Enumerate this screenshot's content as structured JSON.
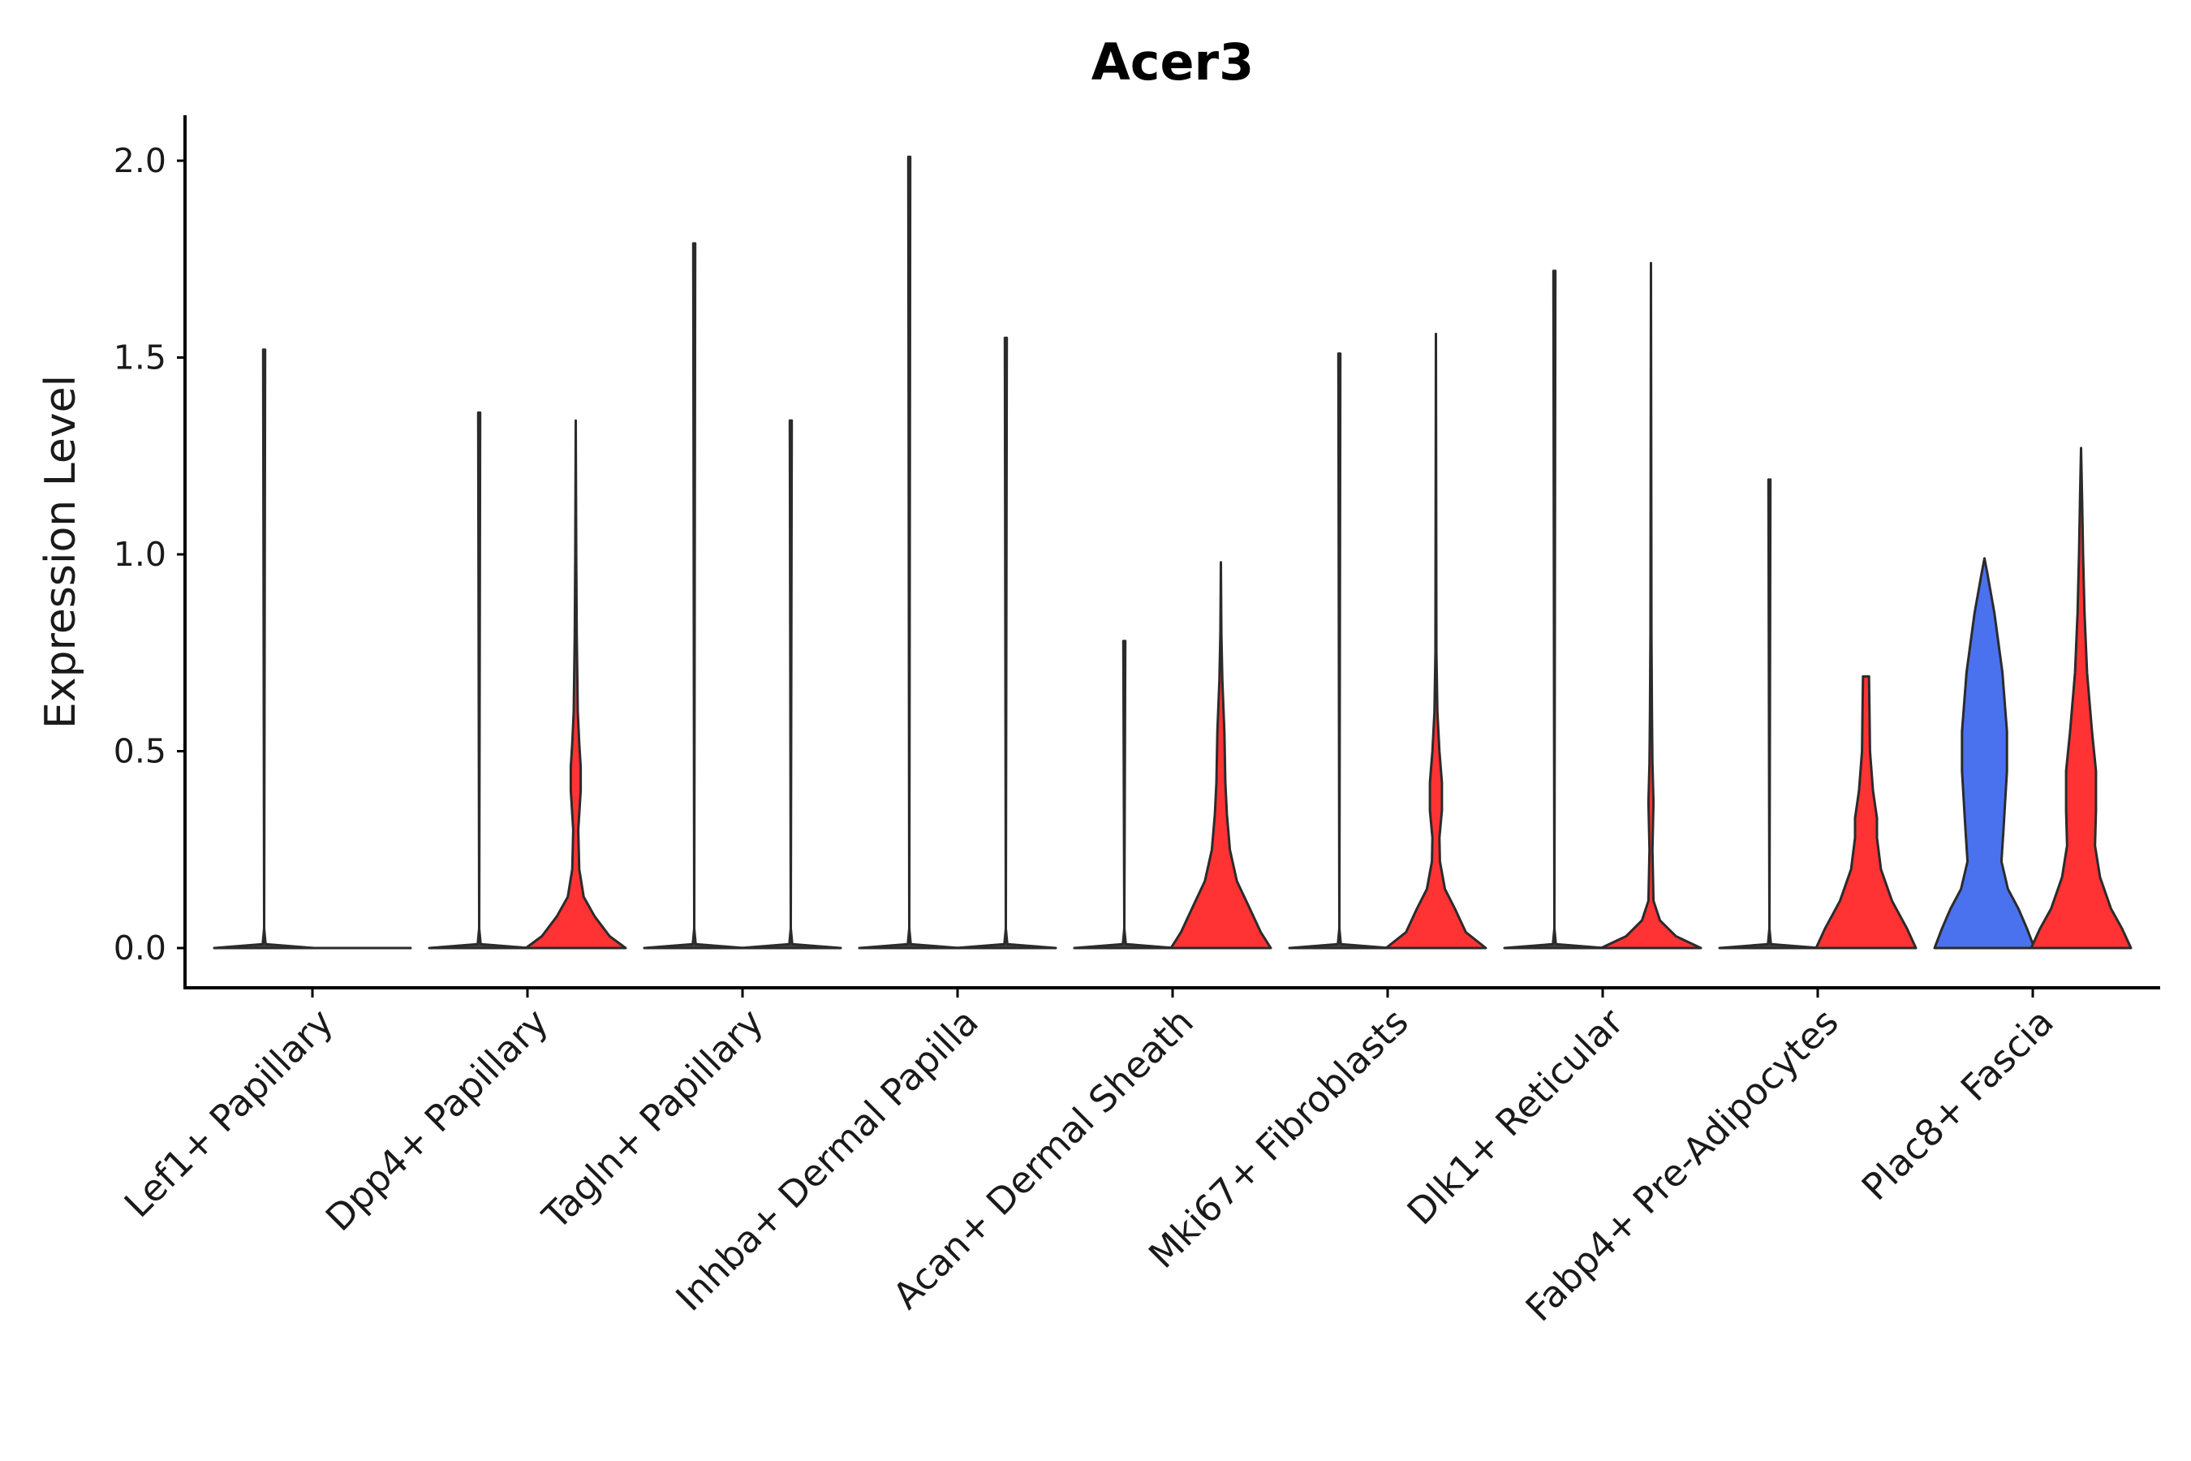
{
  "chart_data": {
    "type": "violin",
    "title": "Acer3",
    "xlabel": "",
    "ylabel": "Expression Level",
    "ylim": [
      -0.1,
      2.12
    ],
    "yticks": [
      "0.0",
      "0.5",
      "1.0",
      "1.5",
      "2.0"
    ],
    "grid": false,
    "legend": "none",
    "categories": [
      "Lef1+ Papillary",
      "Dpp4+ Papillary",
      "Tagln+ Papillary",
      "Inhba+ Dermal Papilla",
      "Acan+ Dermal Sheath",
      "Mki67+ Fibroblasts",
      "Dlk1+ Reticular",
      "Fabp4+ Pre-Adipocytes",
      "Plac8+ Fascia"
    ],
    "colors": {
      "red": "#ff3333",
      "blue": "#4a72ee",
      "outline": "#2b2b2b"
    },
    "groups": [
      {
        "category": "Lef1+ Papillary",
        "violins": [
          {
            "side": "left",
            "color": "#ff3333",
            "max": 1.52,
            "profile": [
              [
                0,
                1.0
              ],
              [
                0.01,
                0.03
              ],
              [
                0.05,
                0
              ]
            ]
          },
          {
            "side": "right",
            "color": "#ff3333",
            "max": 0.0,
            "profile": [
              [
                0,
                1.0
              ]
            ]
          }
        ]
      },
      {
        "category": "Dpp4+ Papillary",
        "violins": [
          {
            "side": "left",
            "color": "#ff3333",
            "max": 1.36,
            "profile": [
              [
                0,
                1.0
              ],
              [
                0.01,
                0.03
              ],
              [
                0.05,
                0
              ]
            ]
          },
          {
            "side": "right",
            "color": "#ff3333",
            "max": 1.34,
            "profile": [
              [
                0,
                1.0
              ],
              [
                0.03,
                0.68
              ],
              [
                0.08,
                0.38
              ],
              [
                0.13,
                0.16
              ],
              [
                0.2,
                0.07
              ],
              [
                0.3,
                0.05
              ],
              [
                0.4,
                0.1
              ],
              [
                0.46,
                0.1
              ],
              [
                0.52,
                0.07
              ],
              [
                0.6,
                0.04
              ],
              [
                0.8,
                0.02
              ],
              [
                1.0,
                0.01
              ],
              [
                1.34,
                0
              ]
            ]
          }
        ]
      },
      {
        "category": "Tagln+ Papillary",
        "violins": [
          {
            "side": "left",
            "color": "#ff3333",
            "max": 1.79,
            "profile": [
              [
                0,
                1.0
              ],
              [
                0.01,
                0.03
              ],
              [
                0.05,
                0
              ]
            ]
          },
          {
            "side": "right",
            "color": "#ff3333",
            "max": 1.34,
            "profile": [
              [
                0,
                1.0
              ],
              [
                0.01,
                0.03
              ],
              [
                0.05,
                0
              ]
            ]
          }
        ]
      },
      {
        "category": "Inhba+ Dermal Papilla",
        "violins": [
          {
            "side": "left",
            "color": "#ff3333",
            "max": 2.01,
            "profile": [
              [
                0,
                1.0
              ],
              [
                0.01,
                0.03
              ],
              [
                0.05,
                0
              ]
            ]
          },
          {
            "side": "right",
            "color": "#ff3333",
            "max": 1.55,
            "profile": [
              [
                0,
                1.0
              ],
              [
                0.01,
                0.03
              ],
              [
                0.05,
                0
              ]
            ]
          }
        ]
      },
      {
        "category": "Acan+ Dermal Sheath",
        "violins": [
          {
            "side": "left",
            "color": "#ff3333",
            "max": 0.78,
            "profile": [
              [
                0,
                1.0
              ],
              [
                0.01,
                0.03
              ],
              [
                0.05,
                0
              ]
            ]
          },
          {
            "side": "right",
            "color": "#ff3333",
            "max": 0.98,
            "profile": [
              [
                0,
                1.0
              ],
              [
                0.04,
                0.8
              ],
              [
                0.1,
                0.58
              ],
              [
                0.17,
                0.32
              ],
              [
                0.25,
                0.18
              ],
              [
                0.34,
                0.12
              ],
              [
                0.42,
                0.09
              ],
              [
                0.55,
                0.07
              ],
              [
                0.68,
                0.03
              ],
              [
                0.8,
                0.01
              ],
              [
                0.98,
                0
              ]
            ]
          }
        ]
      },
      {
        "category": "Mki67+ Fibroblasts",
        "violins": [
          {
            "side": "left",
            "color": "#ff3333",
            "max": 1.51,
            "profile": [
              [
                0,
                1.0
              ],
              [
                0.01,
                0.03
              ],
              [
                0.05,
                0
              ]
            ]
          },
          {
            "side": "right",
            "color": "#ff3333",
            "max": 1.56,
            "profile": [
              [
                0,
                1.0
              ],
              [
                0.04,
                0.6
              ],
              [
                0.1,
                0.38
              ],
              [
                0.15,
                0.18
              ],
              [
                0.22,
                0.08
              ],
              [
                0.28,
                0.07
              ],
              [
                0.35,
                0.12
              ],
              [
                0.42,
                0.12
              ],
              [
                0.5,
                0.07
              ],
              [
                0.6,
                0.03
              ],
              [
                0.75,
                0.01
              ],
              [
                1.56,
                0
              ]
            ]
          }
        ]
      },
      {
        "category": "Dlk1+ Reticular",
        "violins": [
          {
            "side": "left",
            "color": "#ff3333",
            "max": 1.72,
            "profile": [
              [
                0,
                1.0
              ],
              [
                0.01,
                0.03
              ],
              [
                0.05,
                0
              ]
            ]
          },
          {
            "side": "right",
            "color": "#ff3333",
            "max": 1.74,
            "profile": [
              [
                0,
                1.0
              ],
              [
                0.03,
                0.5
              ],
              [
                0.07,
                0.18
              ],
              [
                0.12,
                0.05
              ],
              [
                0.25,
                0.03
              ],
              [
                0.37,
                0.05
              ],
              [
                0.47,
                0.03
              ],
              [
                0.6,
                0.02
              ],
              [
                0.8,
                0.01
              ],
              [
                1.74,
                0
              ]
            ]
          }
        ]
      },
      {
        "category": "Fabp4+ Pre-Adipocytes",
        "violins": [
          {
            "side": "left",
            "color": "#ff3333",
            "max": 1.19,
            "profile": [
              [
                0,
                1.0
              ],
              [
                0.01,
                0.03
              ],
              [
                0.05,
                0
              ]
            ]
          },
          {
            "side": "right",
            "color": "#ff3333",
            "max": 0.69,
            "profile": [
              [
                0,
                1.0
              ],
              [
                0.05,
                0.82
              ],
              [
                0.12,
                0.52
              ],
              [
                0.2,
                0.3
              ],
              [
                0.28,
                0.22
              ],
              [
                0.33,
                0.22
              ],
              [
                0.4,
                0.14
              ],
              [
                0.5,
                0.08
              ],
              [
                0.6,
                0.07
              ],
              [
                0.69,
                0.06
              ],
              [
                0.69,
                0
              ]
            ]
          }
        ]
      },
      {
        "category": "Plac8+ Fascia",
        "violins": [
          {
            "side": "left",
            "color": "#4a72ee",
            "max": 0.99,
            "profile": [
              [
                0,
                1.0
              ],
              [
                0.05,
                0.85
              ],
              [
                0.1,
                0.68
              ],
              [
                0.15,
                0.47
              ],
              [
                0.22,
                0.34
              ],
              [
                0.3,
                0.38
              ],
              [
                0.45,
                0.45
              ],
              [
                0.55,
                0.45
              ],
              [
                0.7,
                0.36
              ],
              [
                0.85,
                0.2
              ],
              [
                0.95,
                0.06
              ],
              [
                0.99,
                0
              ]
            ]
          },
          {
            "side": "right",
            "color": "#ff3333",
            "max": 1.27,
            "profile": [
              [
                0,
                1.0
              ],
              [
                0.05,
                0.82
              ],
              [
                0.1,
                0.6
              ],
              [
                0.18,
                0.38
              ],
              [
                0.26,
                0.28
              ],
              [
                0.35,
                0.3
              ],
              [
                0.45,
                0.3
              ],
              [
                0.55,
                0.22
              ],
              [
                0.7,
                0.12
              ],
              [
                0.85,
                0.07
              ],
              [
                1.0,
                0.04
              ],
              [
                1.15,
                0.02
              ],
              [
                1.27,
                0
              ]
            ]
          }
        ]
      }
    ]
  }
}
